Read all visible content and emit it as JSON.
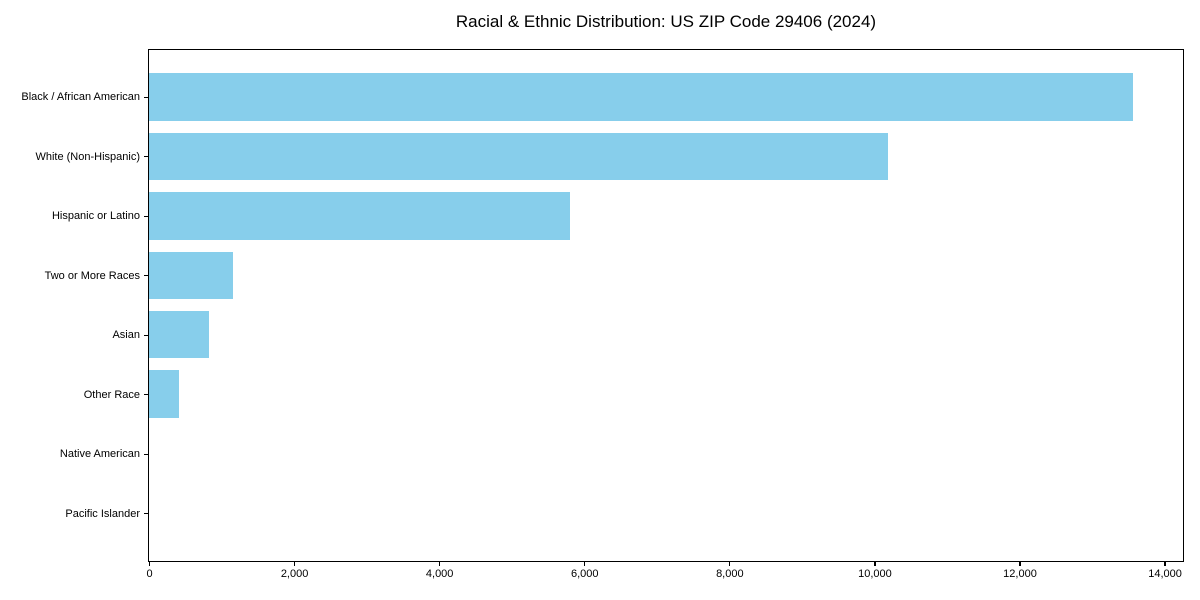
{
  "chart_data": {
    "type": "bar",
    "orientation": "horizontal",
    "title": "Racial & Ethnic Distribution: US ZIP Code 29406 (2024)",
    "categories": [
      "Black / African American",
      "White (Non-Hispanic)",
      "Hispanic or Latino",
      "Two or More Races",
      "Asian",
      "Other Race",
      "Native American",
      "Pacific Islander"
    ],
    "values": [
      13570,
      10190,
      5805,
      1160,
      825,
      415,
      0,
      0
    ],
    "xlabel": "",
    "ylabel": "",
    "xlim": [
      0,
      14240
    ],
    "xticks": [
      0,
      2000,
      4000,
      6000,
      8000,
      10000,
      12000,
      14000
    ],
    "xtick_labels": [
      "0",
      "2,000",
      "4,000",
      "6,000",
      "8,000",
      "10,000",
      "12,000",
      "14,000"
    ],
    "bar_color": "#87CEEB",
    "axis_color": "#000000",
    "background": "#FFFFFF",
    "grid": false,
    "legend": null
  }
}
